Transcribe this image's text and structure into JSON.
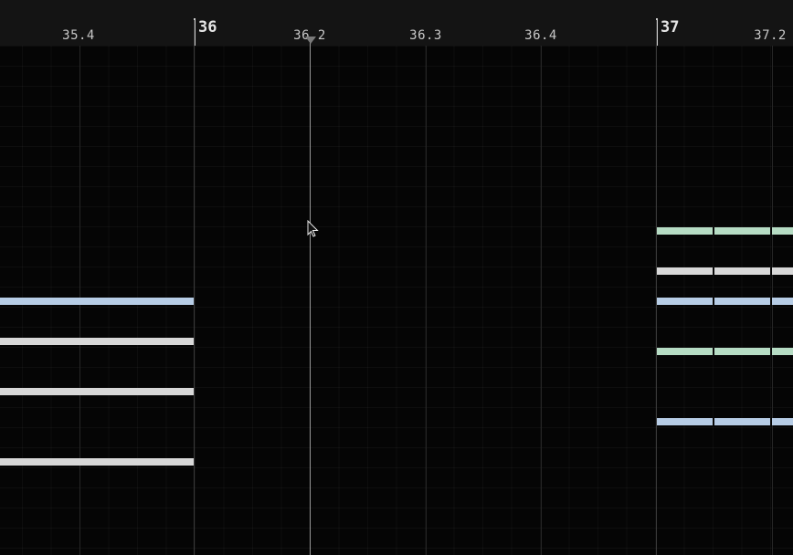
{
  "ruler": {
    "bar_labels": [
      "36",
      "37"
    ],
    "tick_labels": [
      "35.4",
      "36.2",
      "36.3",
      "36.4",
      "37.2"
    ]
  },
  "colors": {
    "blue": "#b7cde6",
    "white": "#d8d8d8",
    "green": "#b6dcc4",
    "playhead": "#9a9a9a"
  },
  "cursor": "arrow-cursor-icon"
}
